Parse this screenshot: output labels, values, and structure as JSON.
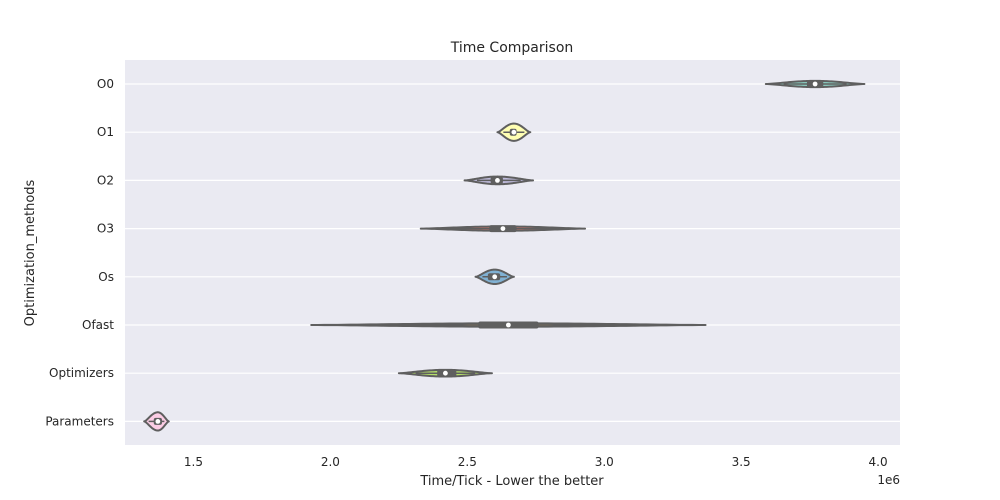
{
  "chart_data": {
    "type": "violin",
    "orientation": "horizontal",
    "title": "Time Comparison",
    "xlabel": "Time/Tick - Lower the better",
    "ylabel": "Optimization_methods",
    "x_offset_label": "1e6",
    "xlim": [
      1.25,
      4.08
    ],
    "x_ticks": [
      1.5,
      2.0,
      2.5,
      3.0,
      3.5,
      4.0
    ],
    "x_tick_labels": [
      "1.5",
      "2.0",
      "2.5",
      "3.0",
      "3.5",
      "4.0"
    ],
    "grid": true,
    "categories": [
      "O0",
      "O1",
      "O2",
      "O3",
      "Os",
      "Ofast",
      "Optimizers",
      "Parameters"
    ],
    "series": [
      {
        "category": "O0",
        "min": 3.59,
        "max": 3.95,
        "q1": 3.74,
        "median": 3.77,
        "q3": 3.8,
        "max_halfwidth": 0.13,
        "color": "#8dd3c7"
      },
      {
        "category": "O1",
        "min": 2.61,
        "max": 2.73,
        "q1": 2.655,
        "median": 2.67,
        "q3": 2.68,
        "max_halfwidth": 0.36,
        "color": "#ffffb3"
      },
      {
        "category": "O2",
        "min": 2.49,
        "max": 2.74,
        "q1": 2.585,
        "median": 2.61,
        "q3": 2.63,
        "max_halfwidth": 0.16,
        "color": "#bebada"
      },
      {
        "category": "O3",
        "min": 2.33,
        "max": 2.93,
        "q1": 2.58,
        "median": 2.63,
        "q3": 2.68,
        "max_halfwidth": 0.09,
        "color": "#fb8072"
      },
      {
        "category": "Os",
        "min": 2.53,
        "max": 2.67,
        "q1": 2.575,
        "median": 2.6,
        "q3": 2.62,
        "max_halfwidth": 0.3,
        "color": "#80b1d3"
      },
      {
        "category": "Ofast",
        "min": 1.93,
        "max": 3.37,
        "q1": 2.54,
        "median": 2.65,
        "q3": 2.76,
        "max_halfwidth": 0.07,
        "color": "#fdb462"
      },
      {
        "category": "Optimizers",
        "min": 2.25,
        "max": 2.59,
        "q1": 2.39,
        "median": 2.42,
        "q3": 2.46,
        "max_halfwidth": 0.14,
        "color": "#b3de69"
      },
      {
        "category": "Parameters",
        "min": 1.32,
        "max": 1.41,
        "q1": 1.355,
        "median": 1.37,
        "q3": 1.385,
        "max_halfwidth": 0.38,
        "color": "#fccde5"
      }
    ]
  }
}
